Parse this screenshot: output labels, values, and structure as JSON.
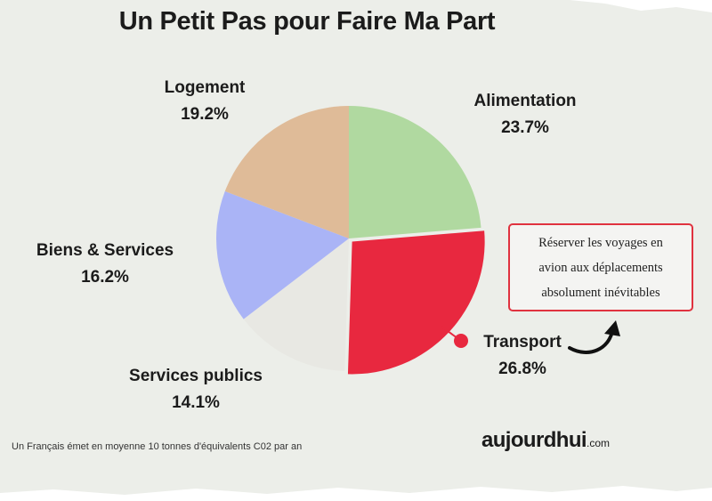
{
  "title": "Un Petit Pas pour Faire Ma Part",
  "chart_data": {
    "type": "pie",
    "title": "Un Petit Pas pour Faire Ma Part",
    "slices": [
      {
        "label": "Alimentation",
        "value": 23.7,
        "value_label": "23.7%",
        "color": "#b0d9a0"
      },
      {
        "label": "Transport",
        "value": 26.8,
        "value_label": "26.8%",
        "color": "#e8283f"
      },
      {
        "label": "Services publics",
        "value": 14.1,
        "value_label": "14.1%",
        "color": "#e8e8e3"
      },
      {
        "label": "Biens & Services",
        "value": 16.2,
        "value_label": "16.2%",
        "color": "#aab4f6"
      },
      {
        "label": "Logement",
        "value": 19.2,
        "value_label": "19.2%",
        "color": "#dfbb98"
      }
    ],
    "start_angle_deg": 0,
    "direction": "clockwise",
    "highlighted_slice": "Transport"
  },
  "callout": {
    "lines": [
      "Réserver les voyages en",
      "avion aux déplacements",
      "absolument inévitables"
    ],
    "border_color": "#e0323f"
  },
  "footnote": "Un Français émet en moyenne 10 tonnes d'équivalents C02 par an",
  "brand": {
    "name": "aujourdhui",
    "suffix": ".com"
  }
}
